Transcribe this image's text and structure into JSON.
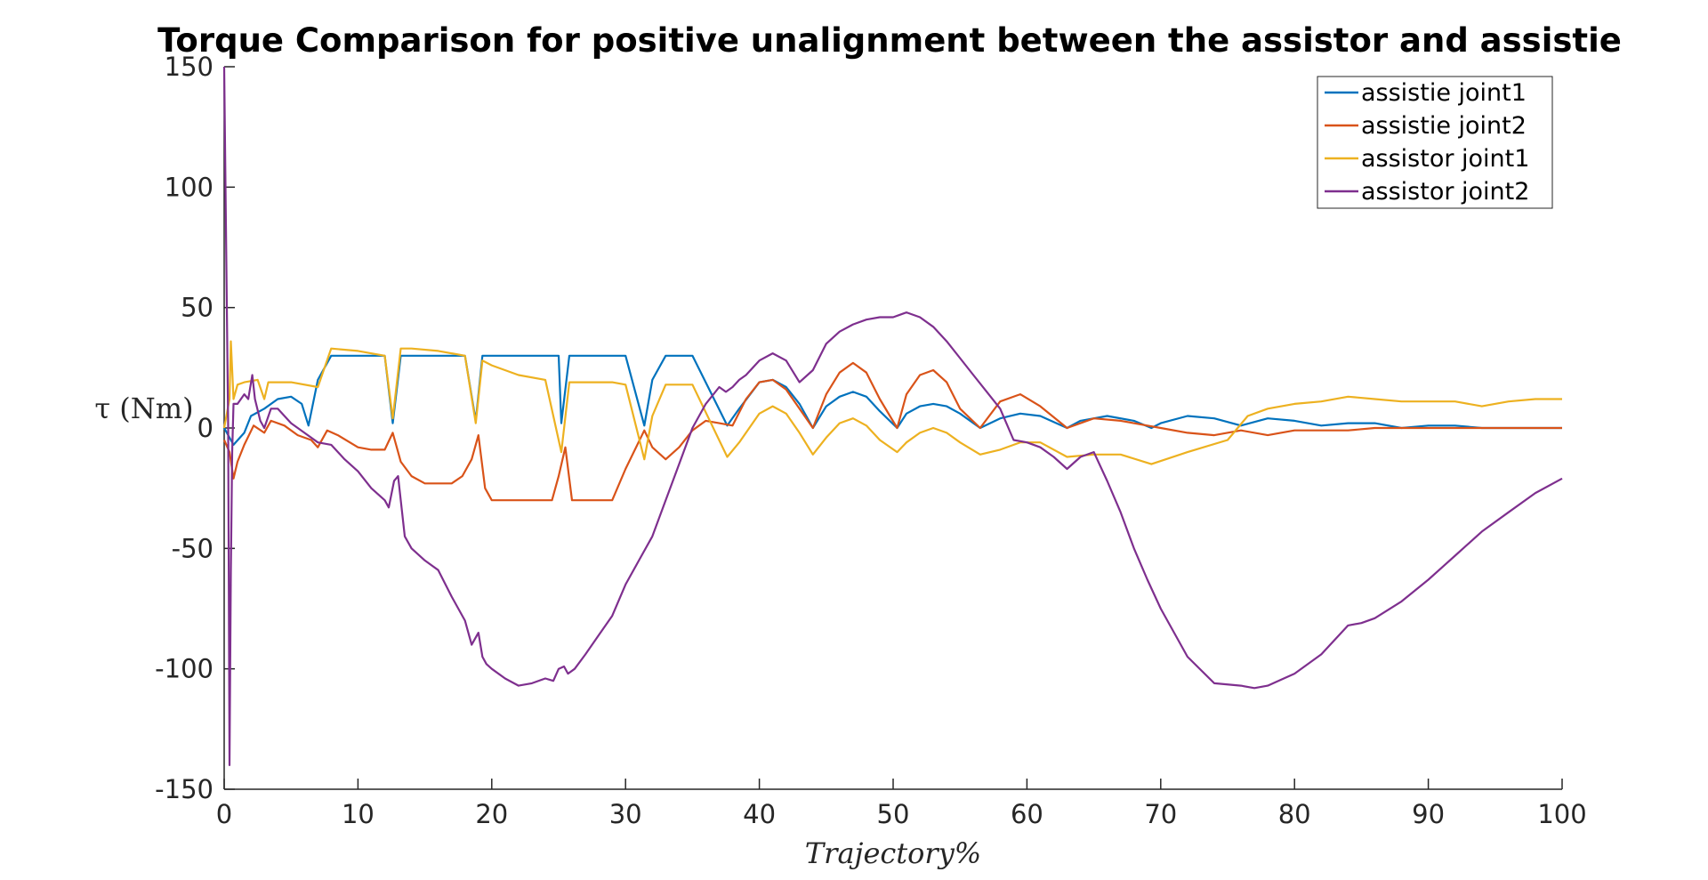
{
  "chart_data": {
    "type": "line",
    "title": "Torque Comparison for positive unalignment between the assistor and assistie",
    "xlabel": "Trajectory%",
    "ylabel": "τ (Nm)",
    "xlim": [
      0,
      100
    ],
    "ylim": [
      -150,
      150
    ],
    "xticks": [
      "0",
      "10",
      "20",
      "30",
      "40",
      "50",
      "60",
      "70",
      "80",
      "90",
      "100"
    ],
    "yticks": [
      "150",
      "100",
      "50",
      "0",
      "-50",
      "-100",
      "-150"
    ],
    "legend_position": "top-right",
    "grid": false,
    "series": [
      {
        "name": "assistie joint1",
        "color": "#0072BD",
        "x": [
          0,
          0.7,
          1.5,
          2,
          3,
          4,
          5,
          5.8,
          6.3,
          7,
          8,
          10,
          12,
          12.6,
          13.2,
          14,
          16,
          18,
          18.8,
          19.3,
          20,
          22,
          25,
          25.2,
          25.8,
          27,
          29,
          30,
          31.4,
          32,
          33,
          35,
          37.6,
          38.5,
          40,
          41,
          42,
          43,
          44,
          45,
          46,
          47,
          48,
          49,
          50.3,
          51,
          52,
          53,
          54,
          55,
          56.5,
          58,
          59.5,
          61,
          63,
          64,
          66,
          68,
          69.3,
          70,
          72,
          74,
          76,
          78,
          80,
          82,
          84,
          86,
          88,
          90,
          92,
          94,
          96,
          98,
          100
        ],
        "y": [
          0,
          -7,
          -2,
          5,
          8,
          12,
          13,
          10,
          1,
          20,
          30,
          30,
          30,
          2,
          30,
          30,
          30,
          30,
          3,
          30,
          30,
          30,
          30,
          2,
          30,
          30,
          30,
          30,
          1,
          20,
          30,
          30,
          1,
          8,
          19,
          20,
          17,
          10,
          0,
          9,
          13,
          15,
          13,
          7,
          0,
          6,
          9,
          10,
          9,
          6,
          0,
          4,
          6,
          5,
          0,
          3,
          5,
          3,
          0,
          2,
          5,
          4,
          1,
          4,
          3,
          1,
          2,
          2,
          0,
          1,
          1,
          0,
          0,
          0,
          0
        ]
      },
      {
        "name": "assistie joint2",
        "color": "#D95319",
        "x": [
          0,
          0.4,
          0.7,
          1,
          1.5,
          2.2,
          3,
          3.5,
          4.5,
          5.5,
          6.5,
          7,
          7.7,
          8.5,
          10,
          11,
          12,
          12.6,
          13.2,
          14,
          15,
          16,
          17,
          17.8,
          18.5,
          19,
          19.5,
          20,
          22,
          24,
          24.5,
          25,
          25.5,
          26,
          28,
          29,
          30,
          31.4,
          32,
          33,
          34,
          35,
          36,
          37,
          38,
          39,
          40,
          41,
          42,
          43,
          44,
          45,
          46,
          47,
          48,
          49,
          50.3,
          51,
          52,
          53,
          54,
          55,
          56.5,
          58,
          59.5,
          61,
          63,
          65,
          67,
          69,
          70,
          72,
          74,
          76,
          78,
          80,
          82,
          84,
          86,
          88,
          90,
          92,
          94,
          96,
          98,
          100
        ],
        "y": [
          -5,
          -10,
          -21,
          -14,
          -7,
          1,
          -2,
          3,
          1,
          -3,
          -5,
          -8,
          -1,
          -3,
          -8,
          -9,
          -9,
          -2,
          -14,
          -20,
          -23,
          -23,
          -23,
          -20,
          -13,
          -3,
          -25,
          -30,
          -30,
          -30,
          -30,
          -20,
          -8,
          -30,
          -30,
          -30,
          -17,
          -1,
          -8,
          -13,
          -8,
          -1,
          3,
          2,
          1,
          12,
          19,
          20,
          16,
          8,
          0,
          14,
          23,
          27,
          23,
          12,
          0,
          14,
          22,
          24,
          19,
          8,
          0,
          11,
          14,
          9,
          0,
          4,
          3,
          1,
          0,
          -2,
          -3,
          -1,
          -3,
          -1,
          -1,
          -1,
          0,
          0,
          0,
          0,
          0,
          0,
          0,
          0
        ]
      },
      {
        "name": "assistor joint1",
        "color": "#EDB120",
        "x": [
          0,
          0.4,
          0.5,
          0.7,
          1,
          1.5,
          2.5,
          3,
          3.3,
          5,
          7,
          8,
          10,
          12,
          12.6,
          13.2,
          14,
          16,
          18,
          18.8,
          19.3,
          20,
          22,
          24,
          25.2,
          25.8,
          27,
          29,
          30,
          31.4,
          32,
          33,
          35,
          37.6,
          38.5,
          40,
          41,
          42,
          43,
          44,
          45,
          46,
          47,
          48,
          49,
          50.3,
          51,
          52,
          53,
          54,
          55,
          56.5,
          58,
          59.5,
          61,
          63,
          65,
          67,
          69.3,
          72,
          75,
          76.5,
          78,
          80,
          82,
          84,
          86,
          88,
          90,
          92,
          94,
          96,
          98,
          100
        ],
        "y": [
          0,
          12,
          36,
          12,
          18,
          19,
          20,
          12,
          19,
          19,
          17,
          33,
          32,
          30,
          4,
          33,
          33,
          32,
          30,
          2,
          28,
          26,
          22,
          20,
          -10,
          19,
          19,
          19,
          18,
          -13,
          5,
          18,
          18,
          -12,
          -6,
          6,
          9,
          6,
          -2,
          -11,
          -4,
          2,
          4,
          1,
          -5,
          -10,
          -6,
          -2,
          0,
          -2,
          -6,
          -11,
          -9,
          -6,
          -6,
          -12,
          -11,
          -11,
          -15,
          -10,
          -5,
          5,
          8,
          10,
          11,
          13,
          12,
          11,
          11,
          11,
          9,
          11,
          12,
          12
        ]
      },
      {
        "name": "assistor joint2",
        "color": "#7E2F8E",
        "x": [
          0,
          0.1,
          0.3,
          0.4,
          0.5,
          0.6,
          0.7,
          1,
          1.5,
          1.8,
          2.1,
          2.3,
          2.7,
          3,
          3.5,
          4,
          5,
          6,
          7,
          8,
          9,
          10,
          11,
          12,
          12.3,
          12.7,
          13,
          13.5,
          14,
          15,
          16,
          17,
          18,
          18.5,
          19,
          19.3,
          19.6,
          20,
          21,
          22,
          23,
          24,
          24.6,
          25,
          25.4,
          25.7,
          26.2,
          27,
          28,
          29,
          30,
          31,
          32,
          33,
          34,
          35,
          36,
          37,
          37.5,
          38,
          38.5,
          39,
          40,
          41,
          42,
          43,
          44,
          45,
          46,
          47,
          48,
          49,
          50,
          50.5,
          51,
          52,
          53,
          54,
          55,
          56,
          57,
          58,
          59,
          60,
          61,
          62,
          63,
          64,
          65,
          66,
          67,
          68,
          69,
          70,
          72,
          74,
          76,
          77,
          78,
          80,
          82,
          84,
          85,
          86,
          88,
          90,
          92,
          94,
          96,
          98,
          100
        ],
        "y": [
          150,
          100,
          0,
          -140,
          -60,
          -10,
          10,
          10,
          14,
          12,
          22,
          12,
          3,
          0,
          8,
          8,
          2,
          -2,
          -6,
          -7,
          -13,
          -18,
          -25,
          -30,
          -33,
          -22,
          -20,
          -45,
          -50,
          -55,
          -59,
          -70,
          -80,
          -90,
          -85,
          -95,
          -98,
          -100,
          -104,
          -107,
          -106,
          -104,
          -105,
          -100,
          -99,
          -102,
          -100,
          -94,
          -86,
          -78,
          -65,
          -55,
          -45,
          -30,
          -15,
          0,
          10,
          17,
          15,
          17,
          20,
          22,
          28,
          31,
          28,
          19,
          24,
          35,
          40,
          43,
          45,
          46,
          46,
          47,
          48,
          46,
          42,
          36,
          29,
          22,
          15,
          8,
          -5,
          -6,
          -8,
          -12,
          -17,
          -12,
          -10,
          -22,
          -35,
          -50,
          -63,
          -75,
          -95,
          -106,
          -107,
          -108,
          -107,
          -102,
          -94,
          -82,
          -81,
          -79,
          -72,
          -63,
          -53,
          -43,
          -35,
          -27,
          -21
        ]
      }
    ]
  }
}
